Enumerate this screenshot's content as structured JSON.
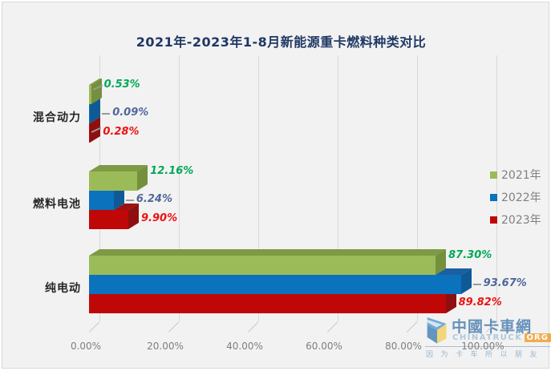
{
  "title": "2021年-2023年1-8月新能源重卡燃料种类对比",
  "chart_data": {
    "type": "bar",
    "orientation": "horizontal",
    "style": "3d",
    "title": "2021年-2023年1-8月新能源重卡燃料种类对比",
    "categories": [
      "混合动力",
      "燃料电池",
      "纯电动"
    ],
    "series": [
      {
        "name": "2021年",
        "values": [
          0.53,
          12.16,
          87.3
        ],
        "color": "#9bbb59",
        "side_color": "#74903c",
        "top_color": "#7e9a44",
        "label_color": "#00a859"
      },
      {
        "name": "2022年",
        "values": [
          0.09,
          6.24,
          93.67
        ],
        "color": "#0b72be",
        "side_color": "#0f5a96",
        "top_color": "#1a5fa0",
        "label_color": "#50679b"
      },
      {
        "name": "2023年",
        "values": [
          0.28,
          9.9,
          89.82
        ],
        "color": "#c00707",
        "side_color": "#8e0f0f",
        "top_color": "#9c1212",
        "label_color": "#ee1111"
      }
    ],
    "x_ticks": [
      "0.00%",
      "20.00%",
      "40.00%",
      "60.00%",
      "80.00%",
      "100.00%"
    ],
    "xlim": [
      0,
      100
    ],
    "grid": true,
    "legend_position": "right-middle",
    "value_label_format": "0.00%"
  },
  "colors": {
    "background": "#f2f2f2",
    "title_text": "#1f3864",
    "axis_text": "#7f7f7f",
    "gridline": "#d9d9d9",
    "legend_text": "#808080",
    "leader_line": "#9a9a9a"
  },
  "watermark": {
    "logo": "chinatruck-logo",
    "site_name": "中國卡車網",
    "site_domain": "CHINATRUCK",
    "site_tld": "ORG",
    "slogan": "因为卡车所以朋友"
  }
}
